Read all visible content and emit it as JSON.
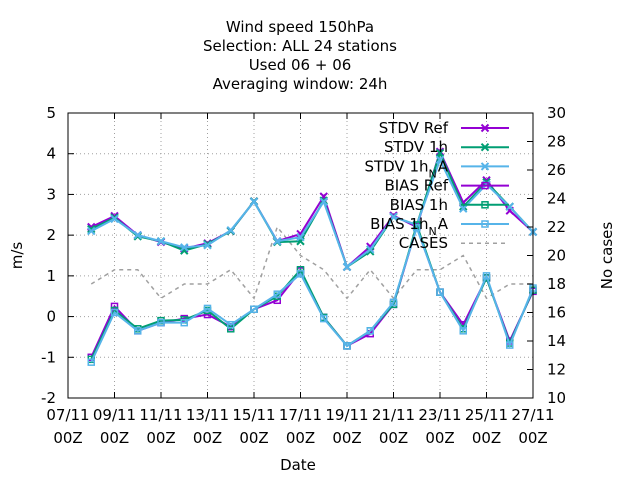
{
  "chart_data": {
    "type": "line",
    "title_lines": [
      "Wind speed 150hPa",
      "Selection: ALL      24 stations",
      "Used  06 + 06",
      "Averaging window: 24h"
    ],
    "xlabel": "Date",
    "ylabel": "m/s",
    "y2label": "No cases",
    "ylim": [
      -2,
      5
    ],
    "y2lim": [
      10,
      30
    ],
    "yticks": [
      "-2",
      "-1",
      "0",
      "1",
      "2",
      "3",
      "4",
      "5"
    ],
    "y2ticks": [
      "10",
      "12",
      "14",
      "16",
      "18",
      "20",
      "22",
      "24",
      "26",
      "28",
      "30"
    ],
    "xtick_top": [
      "07/11",
      "09/11",
      "11/11",
      "13/11",
      "15/11",
      "17/11",
      "19/11",
      "21/11",
      "23/11",
      "25/11",
      "27/11"
    ],
    "xtick_bottom": [
      "00Z",
      "00Z",
      "00Z",
      "00Z",
      "00Z",
      "00Z",
      "00Z",
      "00Z",
      "00Z",
      "00Z",
      "00Z"
    ],
    "grid": true,
    "legend_position": "top-right",
    "x": [
      "08/11 00Z",
      "09/11 00Z",
      "10/11 00Z",
      "11/11 00Z",
      "12/11 00Z",
      "13/11 00Z",
      "14/11 00Z",
      "15/11 00Z",
      "16/11 00Z",
      "17/11 00Z",
      "18/11 00Z",
      "19/11 00Z",
      "20/11 00Z",
      "21/11 00Z",
      "22/11 00Z",
      "23/11 00Z",
      "24/11 00Z",
      "25/11 00Z",
      "26/11 00Z",
      "27/11 00Z"
    ],
    "series": [
      {
        "name": "STDV Ref",
        "axis": "y1",
        "color": "#9400d3",
        "marker": "x",
        "dash": "",
        "values": [
          2.2,
          2.47,
          2.0,
          1.83,
          1.67,
          1.8,
          2.1,
          2.83,
          1.85,
          2.03,
          2.95,
          1.22,
          1.72,
          2.48,
          2.2,
          4.05,
          2.8,
          3.35,
          2.6,
          2.08
        ]
      },
      {
        "name": "STDV 1h",
        "axis": "y1",
        "color": "#009e73",
        "marker": "x",
        "dash": "",
        "values": [
          2.15,
          2.43,
          1.97,
          1.85,
          1.62,
          1.78,
          2.1,
          2.83,
          1.83,
          1.85,
          2.85,
          1.22,
          1.6,
          2.45,
          2.25,
          4.02,
          2.7,
          3.3,
          2.7,
          2.08
        ]
      },
      {
        "name": "STDV 1h",
        "name_sub": "N",
        "name_suffix": "A",
        "axis": "y1",
        "color": "#56b4e9",
        "marker": "x",
        "dash": "",
        "values": [
          2.1,
          2.4,
          2.0,
          1.85,
          1.7,
          1.75,
          2.12,
          2.82,
          1.85,
          1.95,
          2.82,
          1.22,
          1.65,
          2.45,
          2.25,
          3.85,
          2.65,
          3.25,
          2.7,
          2.08
        ]
      },
      {
        "name": "BIAS Ref",
        "axis": "y1",
        "color": "#9400d3",
        "marker": "square",
        "dash": "",
        "values": [
          -1.0,
          0.25,
          -0.35,
          -0.15,
          -0.05,
          0.05,
          -0.25,
          0.18,
          0.4,
          1.12,
          -0.02,
          -0.72,
          -0.42,
          0.3,
          2.2,
          0.6,
          -0.2,
          0.95,
          -0.6,
          0.62
        ]
      },
      {
        "name": "BIAS 1h",
        "axis": "y1",
        "color": "#009e73",
        "marker": "square",
        "dash": "",
        "values": [
          -1.05,
          0.15,
          -0.3,
          -0.1,
          -0.08,
          0.15,
          -0.3,
          0.18,
          0.5,
          1.15,
          -0.02,
          -0.72,
          -0.35,
          0.3,
          2.25,
          0.6,
          -0.3,
          0.95,
          -0.65,
          0.65
        ]
      },
      {
        "name": "BIAS 1h",
        "name_sub": "N",
        "name_suffix": "A",
        "axis": "y1",
        "color": "#56b4e9",
        "marker": "square",
        "dash": "",
        "values": [
          -1.12,
          0.1,
          -0.35,
          -0.15,
          -0.15,
          0.2,
          -0.2,
          0.18,
          0.55,
          1.05,
          -0.05,
          -0.72,
          -0.35,
          0.35,
          2.18,
          0.6,
          -0.35,
          1.0,
          -0.7,
          0.7
        ]
      },
      {
        "name": "CASES",
        "axis": "y2",
        "color": "#a0a0a0",
        "marker": "none",
        "dash": "4,4",
        "values": [
          18,
          19,
          19,
          17,
          18,
          18,
          19,
          17,
          22,
          20,
          19,
          17,
          19,
          17,
          19,
          19,
          20,
          17,
          18,
          18
        ]
      }
    ]
  }
}
